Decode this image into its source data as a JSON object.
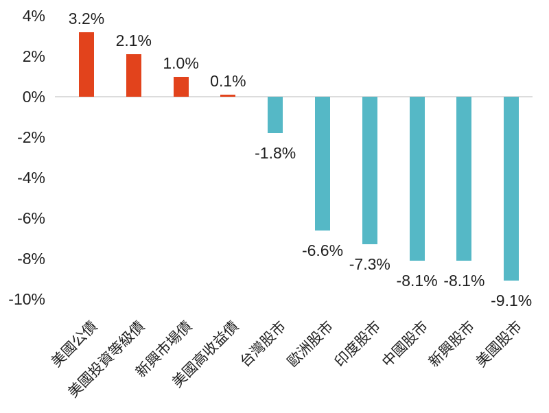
{
  "chart_data": {
    "type": "bar",
    "title": "",
    "xlabel": "",
    "ylabel": "",
    "categories": [
      "美國公債",
      "美國投資等級債",
      "新興市場債",
      "美國高收益債",
      "台灣股市",
      "歐洲股市",
      "印度股市",
      "中國股市",
      "新興股市",
      "美國股市"
    ],
    "values": [
      3.2,
      2.1,
      1.0,
      0.1,
      -1.8,
      -6.6,
      -7.3,
      -8.1,
      -8.1,
      -9.1
    ],
    "value_labels": [
      "3.2%",
      "2.1%",
      "1.0%",
      "0.1%",
      "-1.8%",
      "-6.6%",
      "-7.3%",
      "-8.1%",
      "-8.1%",
      "-9.1%"
    ],
    "yticks": {
      "values": [
        4,
        2,
        0,
        -2,
        -4,
        -6,
        -8,
        -10
      ],
      "labels": [
        "4%",
        "2%",
        "0%",
        "-2%",
        "-4%",
        "-6%",
        "-8%",
        "-10%"
      ]
    },
    "ylim": [
      -10,
      4
    ],
    "grid": false,
    "legend": false,
    "colors": {
      "positive_bar": "#e2431c",
      "negative_bar": "#55b8c6",
      "axis_line": "#dcdcdc",
      "text": "#1f1f1f"
    }
  }
}
